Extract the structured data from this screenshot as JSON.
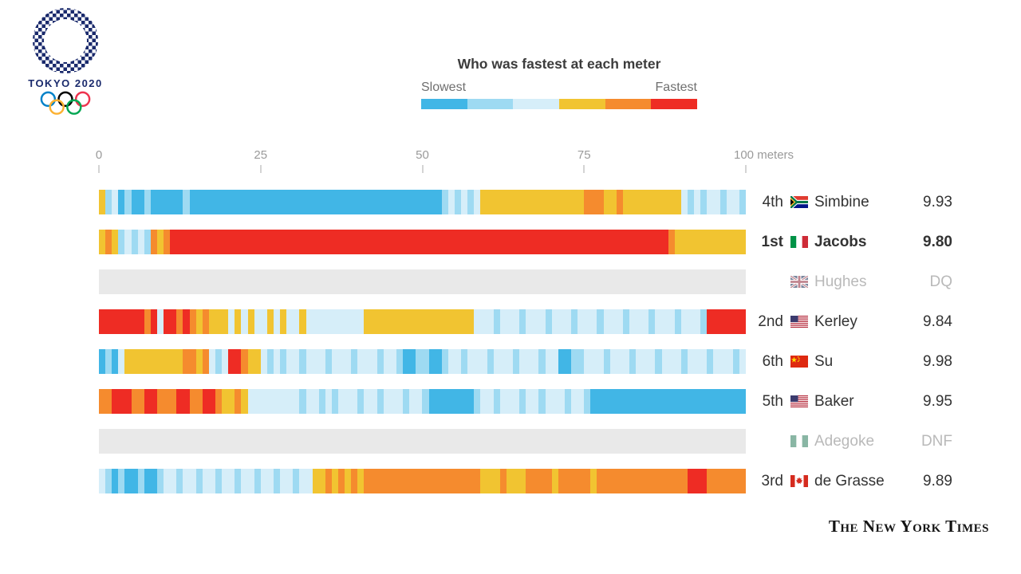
{
  "logo": {
    "title": "TOKYO 2020"
  },
  "footer": {
    "credit": "The New York Times"
  },
  "chart_data": {
    "type": "heatmap",
    "title": "Who was fastest at each meter",
    "x": {
      "label": "meters",
      "min": 0,
      "max": 100,
      "ticks": [
        {
          "value": 0,
          "label": "0"
        },
        {
          "value": 25,
          "label": "25"
        },
        {
          "value": 50,
          "label": "50"
        },
        {
          "value": 75,
          "label": "75"
        },
        {
          "value": 100,
          "label": "100 meters"
        }
      ]
    },
    "color_scale": {
      "left_label": "Slowest",
      "right_label": "Fastest",
      "levels": 6,
      "colors": [
        "#41b6e6",
        "#9edaf2",
        "#d6eef9",
        "#f1c431",
        "#f58b2e",
        "#ee2c24"
      ],
      "encoding": "one digit per meter, index into colors: 0=slowest ... 5=fastest"
    },
    "runners": [
      {
        "rank": "4th",
        "name": "Simbine",
        "time": "9.93",
        "flag": "south-africa",
        "bold": false,
        "muted": false,
        "meters": "3120100100000100000000000000000000000000000000000000012121233333333333333334443343333333332121221221"
      },
      {
        "rank": "1st",
        "name": "Jacobs",
        "time": "9.80",
        "flag": "italy",
        "bold": true,
        "muted": false,
        "meters": "3431212143455555555555555555555555555555555555555555555555555555555555555555555555555555433333333333"
      },
      {
        "rank": "",
        "name": "Hughes",
        "time": "DQ",
        "flag": "great-britain",
        "bold": false,
        "muted": true,
        "meters": ""
      },
      {
        "rank": "2nd",
        "name": "Kerley",
        "time": "9.84",
        "flag": "united-states",
        "bold": false,
        "muted": false,
        "meters": "5555555452554543433323232232322322222222233333333333333333222122212221222122212221222122212221555555"
      },
      {
        "rank": "6th",
        "name": "Su",
        "time": "9.98",
        "flag": "china",
        "bold": false,
        "muted": false,
        "meters": "0102333333333443421255433212122122212221222122100110012212221222122212200112221222122212221222122212"
      },
      {
        "rank": "5th",
        "name": "Baker",
        "time": "9.95",
        "flag": "united-states",
        "bold": false,
        "muted": false,
        "meters": "4455544554445544554334322222222122121222122122212210000000122122212212221221000000000000000000000000"
      },
      {
        "rank": "",
        "name": "Adegoke",
        "time": "DNF",
        "flag": "nigeria",
        "bold": false,
        "muted": true,
        "meters": ""
      },
      {
        "rank": "3rd",
        "name": "de Grasse",
        "time": "9.89",
        "flag": "canada",
        "bold": false,
        "muted": false,
        "meters": "2101001001221221221221221221221223343434344444444444444444433343334444344444344444444444444555444444"
      }
    ]
  }
}
